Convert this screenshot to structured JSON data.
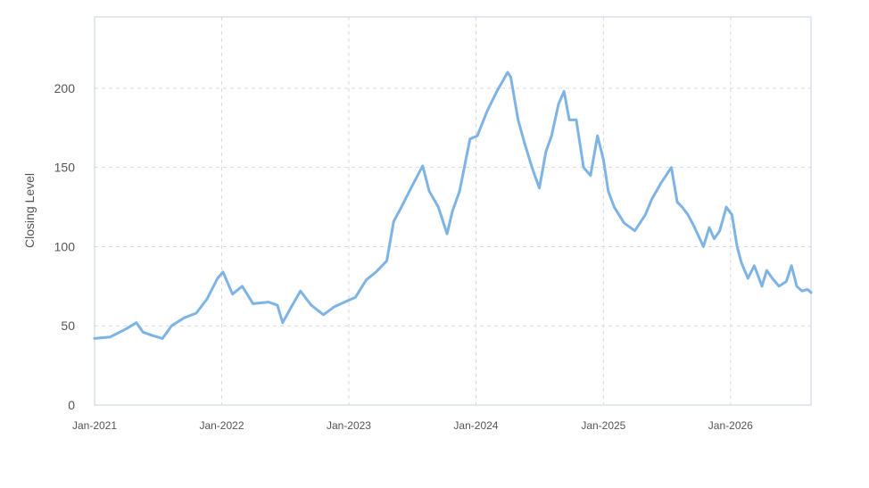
{
  "chart_data": {
    "type": "line",
    "title": "",
    "xlabel": "",
    "ylabel": "Closing Level",
    "x_ticks": [
      "Jan-2021",
      "Jan-2022",
      "Jan-2023",
      "Jan-2024",
      "Jan-2025",
      "Jan-2026"
    ],
    "y_ticks": [
      0,
      50,
      100,
      150,
      200
    ],
    "xlim": [
      "2021-01-01",
      "2026-08-20"
    ],
    "ylim": [
      0,
      245
    ],
    "grid": true,
    "legend": "none",
    "colors": {
      "line": "#7eb3e6",
      "grid": "#d9d9d9",
      "axis": "#c8d3e3",
      "text": "#555555"
    },
    "series": [
      {
        "x": [
          "2021-01-01",
          "2021-02-15",
          "2021-04-01",
          "2021-05-01",
          "2021-05-20",
          "2021-06-15",
          "2021-07-15",
          "2021-08-10",
          "2021-09-15",
          "2021-10-20",
          "2021-11-20",
          "2021-12-20",
          "2022-01-05",
          "2022-02-01",
          "2022-03-01",
          "2022-04-01",
          "2022-05-15",
          "2022-06-10",
          "2022-06-25",
          "2022-07-20",
          "2022-08-15",
          "2022-09-15",
          "2022-10-20",
          "2022-11-20",
          "2022-12-20",
          "2023-01-20",
          "2023-02-20",
          "2023-03-20",
          "2023-04-20",
          "2023-05-10",
          "2023-06-01",
          "2023-07-01",
          "2023-08-01",
          "2023-08-20",
          "2023-09-15",
          "2023-10-10",
          "2023-10-25",
          "2023-11-15",
          "2023-12-15",
          "2024-01-05",
          "2024-02-01",
          "2024-03-01",
          "2024-04-01",
          "2024-04-10",
          "2024-05-01",
          "2024-05-20",
          "2024-06-10",
          "2024-07-01",
          "2024-07-20",
          "2024-08-05",
          "2024-08-25",
          "2024-09-10",
          "2024-09-25",
          "2024-10-15",
          "2024-11-05",
          "2024-11-25",
          "2024-12-15",
          "2025-01-01",
          "2025-01-15",
          "2025-02-01",
          "2025-03-01",
          "2025-04-01",
          "2025-05-01",
          "2025-05-20",
          "2025-06-15",
          "2025-07-15",
          "2025-08-01",
          "2025-08-15",
          "2025-09-01",
          "2025-09-20",
          "2025-10-15",
          "2025-11-01",
          "2025-11-15",
          "2025-12-01",
          "2025-12-20",
          "2026-01-05",
          "2026-01-20",
          "2026-02-01",
          "2026-02-20",
          "2026-03-10",
          "2026-04-01",
          "2026-04-15",
          "2026-05-01",
          "2026-05-20",
          "2026-06-10",
          "2026-06-25",
          "2026-07-10",
          "2026-07-25",
          "2026-08-10",
          "2026-08-20"
        ],
        "values": [
          42,
          43,
          48,
          52,
          46,
          44,
          42,
          50,
          55,
          58,
          67,
          80,
          84,
          70,
          75,
          64,
          65,
          63,
          52,
          62,
          72,
          63,
          57,
          62,
          65,
          68,
          79,
          84,
          91,
          116,
          125,
          138,
          151,
          135,
          125,
          108,
          122,
          135,
          168,
          170,
          185,
          198,
          210,
          207,
          180,
          165,
          150,
          137,
          160,
          170,
          190,
          198,
          180,
          180,
          150,
          145,
          170,
          155,
          135,
          125,
          115,
          110,
          120,
          130,
          140,
          150,
          128,
          125,
          120,
          112,
          100,
          112,
          105,
          110,
          125,
          120,
          100,
          90,
          80,
          88,
          75,
          85,
          80,
          75,
          78,
          88,
          75,
          72,
          73,
          71
        ]
      }
    ]
  }
}
